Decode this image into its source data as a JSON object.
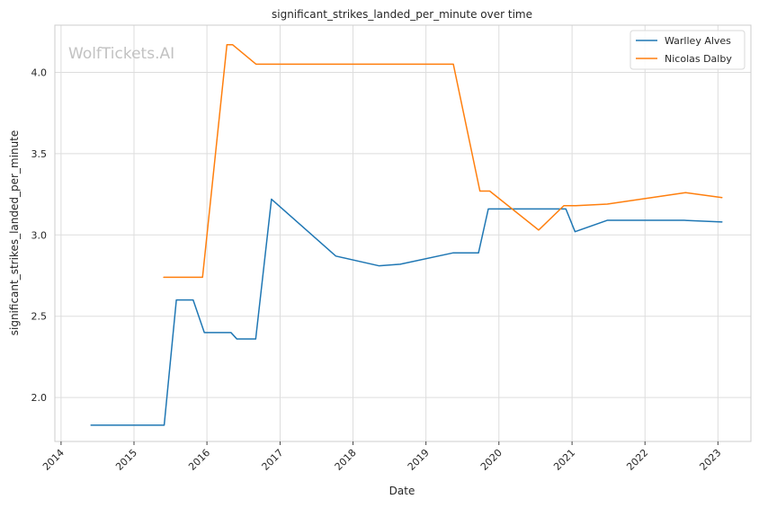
{
  "chart_data": {
    "type": "line",
    "title": "significant_strikes_landed_per_minute over time",
    "xlabel": "Date",
    "ylabel": "significant_strikes_landed_per_minute",
    "watermark": "WolfTickets.AI",
    "x_ticks": [
      "2014",
      "2015",
      "2016",
      "2017",
      "2018",
      "2019",
      "2020",
      "2021",
      "2022",
      "2023"
    ],
    "y_ticks": [
      "2.0",
      "2.5",
      "3.0",
      "3.5",
      "4.0"
    ],
    "xlim": [
      "2013-12-01",
      "2023-06-15"
    ],
    "ylim": [
      1.73,
      4.29
    ],
    "grid": true,
    "legend_position": "top-right",
    "series": [
      {
        "name": "Warlley Alves",
        "color": "#1f77b4",
        "points": [
          [
            "2014-05-31",
            1.83
          ],
          [
            "2015-06-01",
            1.83
          ],
          [
            "2015-08-01",
            2.6
          ],
          [
            "2015-10-24",
            2.6
          ],
          [
            "2015-12-19",
            2.4
          ],
          [
            "2016-04-30",
            2.4
          ],
          [
            "2016-05-30",
            2.36
          ],
          [
            "2016-09-01",
            2.36
          ],
          [
            "2016-11-19",
            3.22
          ],
          [
            "2017-10-07",
            2.87
          ],
          [
            "2018-05-12",
            2.81
          ],
          [
            "2018-08-25",
            2.82
          ],
          [
            "2019-05-18",
            2.89
          ],
          [
            "2019-09-21",
            2.89
          ],
          [
            "2019-11-09",
            3.16
          ],
          [
            "2020-12-01",
            3.16
          ],
          [
            "2021-01-16",
            3.02
          ],
          [
            "2021-06-26",
            3.09
          ],
          [
            "2022-07-16",
            3.09
          ],
          [
            "2023-01-21",
            3.08
          ]
        ]
      },
      {
        "name": "Nicolas Dalby",
        "color": "#ff7f0e",
        "points": [
          [
            "2015-05-30",
            2.74
          ],
          [
            "2015-12-10",
            2.74
          ],
          [
            "2016-04-10",
            4.17
          ],
          [
            "2016-05-08",
            4.17
          ],
          [
            "2016-09-03",
            4.05
          ],
          [
            "2019-05-18",
            4.05
          ],
          [
            "2019-09-28",
            3.27
          ],
          [
            "2019-11-16",
            3.27
          ],
          [
            "2020-07-18",
            3.03
          ],
          [
            "2020-11-21",
            3.18
          ],
          [
            "2021-01-20",
            3.18
          ],
          [
            "2021-06-26",
            3.19
          ],
          [
            "2022-07-23",
            3.26
          ],
          [
            "2023-01-21",
            3.23
          ]
        ]
      }
    ]
  }
}
